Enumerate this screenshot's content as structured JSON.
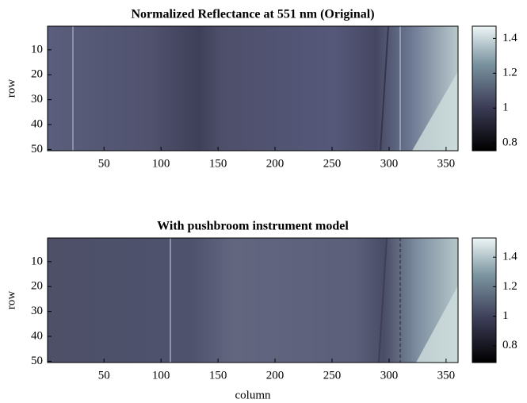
{
  "chart_data": [
    {
      "type": "heatmap",
      "title": "Normalized Reflectance at 551 nm (Original)",
      "ylabel": "row",
      "xlim": [
        0.5,
        360.5
      ],
      "xticks": [
        50,
        100,
        150,
        200,
        250,
        300,
        350
      ],
      "ylim": [
        0.5,
        50.5
      ],
      "yticks": [
        10,
        20,
        30,
        40,
        50
      ],
      "y_reversed": true,
      "colorbar": {
        "lim": [
          0.755,
          1.47
        ],
        "ticks": [
          0.8,
          1,
          1.2,
          1.4
        ]
      }
    },
    {
      "type": "heatmap",
      "title": "With pushbroom instrument model",
      "xlabel": "column",
      "ylabel": "row",
      "xlim": [
        0.5,
        360.5
      ],
      "xticks": [
        50,
        100,
        150,
        200,
        250,
        300,
        350
      ],
      "ylim": [
        0.5,
        50.5
      ],
      "yticks": [
        10,
        20,
        30,
        40,
        50
      ],
      "y_reversed": true,
      "colorbar": {
        "lim": [
          0.686,
          1.53
        ],
        "ticks": [
          0.8,
          1,
          1.2,
          1.4
        ]
      }
    }
  ]
}
